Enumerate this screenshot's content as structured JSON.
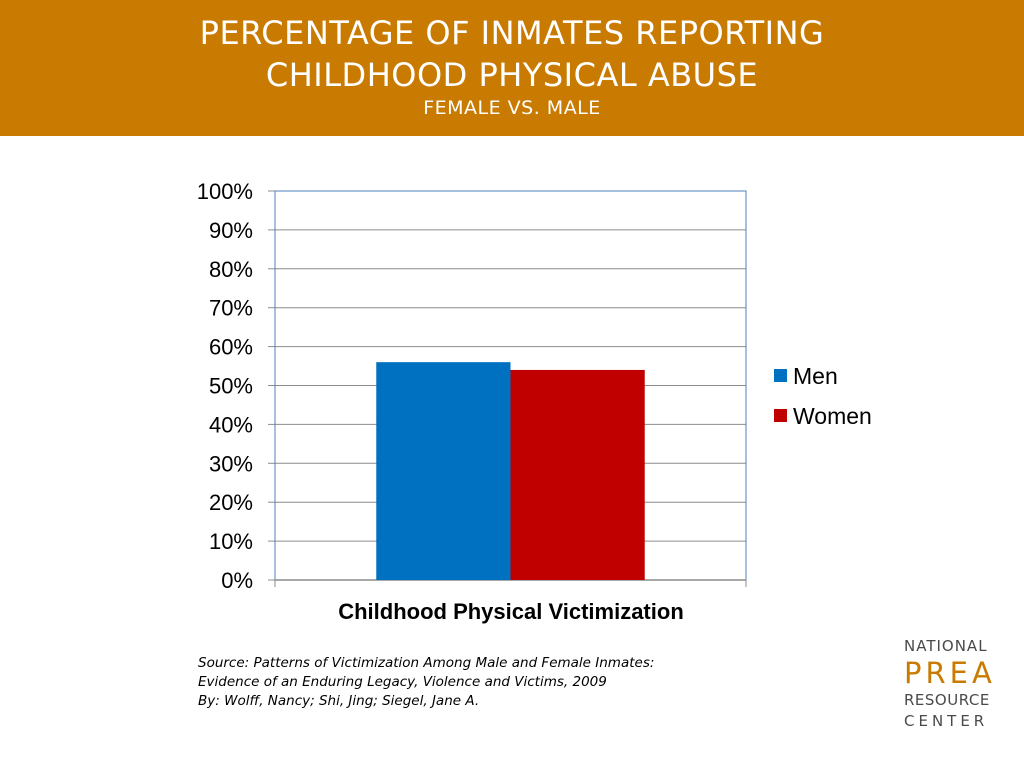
{
  "header": {
    "title_line1": "PERCENTAGE OF INMATES REPORTING",
    "title_line2": "CHILDHOOD PHYSICAL ABUSE",
    "subtitle": "FEMALE VS. MALE"
  },
  "chart_data": {
    "type": "bar",
    "categories": [
      "Childhood Physical Victimization"
    ],
    "series": [
      {
        "name": "Men",
        "values": [
          56
        ],
        "color": "#0070c0"
      },
      {
        "name": "Women",
        "values": [
          54
        ],
        "color": "#c00000"
      }
    ],
    "xlabel": "Childhood Physical Victimization",
    "ylabel": "",
    "ylim": [
      0,
      100
    ],
    "yticks": [
      "0%",
      "10%",
      "20%",
      "30%",
      "40%",
      "50%",
      "60%",
      "70%",
      "80%",
      "90%",
      "100%"
    ],
    "grid": true,
    "legend": "right"
  },
  "source": {
    "line1": "Source: Patterns of Victimization Among Male and Female Inmates:",
    "line2": "Evidence of an Enduring Legacy, Violence and Victims, 2009",
    "line3": "By: Wolff, Nancy; Shi, Jing; Siegel, Jane A."
  },
  "logo": {
    "line1": "NATIONAL",
    "line2": "PREA",
    "line3": "RESOURCE",
    "line4": "CENTER",
    "accent_color": "#c97a00"
  }
}
